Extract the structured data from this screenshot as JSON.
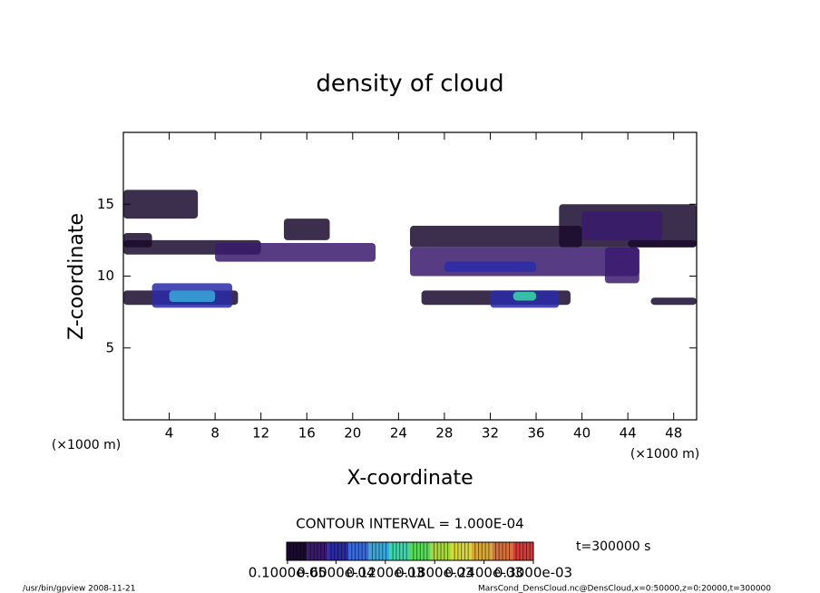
{
  "chart_data": {
    "type": "contour",
    "title": "density of cloud",
    "xlabel": "X-coordinate",
    "ylabel": "Z-coordinate",
    "xunit": "(×1000 m)",
    "yunit": "(×1000 m)",
    "xlim": [
      0,
      50
    ],
    "ylim": [
      0,
      20
    ],
    "xticks": [
      4,
      8,
      12,
      16,
      20,
      24,
      28,
      32,
      36,
      40,
      44,
      48
    ],
    "yticks": [
      5,
      10,
      15
    ],
    "contour_interval": "CONTOUR INTERVAL = 1.000E-04",
    "time": "t=300000 s",
    "patches": [
      {
        "x": [
          0,
          6.5
        ],
        "z": [
          14,
          16
        ],
        "value": 2e-05
      },
      {
        "x": [
          0,
          12
        ],
        "z": [
          11.5,
          12.5
        ],
        "value": 2e-05
      },
      {
        "x": [
          0,
          2.5
        ],
        "z": [
          12,
          13
        ],
        "value": 2e-05
      },
      {
        "x": [
          8,
          22
        ],
        "z": [
          11,
          12.3
        ],
        "value": 3e-05
      },
      {
        "x": [
          14,
          18
        ],
        "z": [
          12.5,
          14
        ],
        "value": 2e-05
      },
      {
        "x": [
          0,
          10
        ],
        "z": [
          8,
          9
        ],
        "value": 2e-05
      },
      {
        "x": [
          2.5,
          9.5
        ],
        "z": [
          7.8,
          9.5
        ],
        "value": 6e-05
      },
      {
        "x": [
          4,
          8
        ],
        "z": [
          8.2,
          9
        ],
        "value": 0.00012
      },
      {
        "x": [
          25,
          40
        ],
        "z": [
          12,
          13.5
        ],
        "value": 2e-05
      },
      {
        "x": [
          25,
          45
        ],
        "z": [
          10,
          12
        ],
        "value": 3e-05
      },
      {
        "x": [
          28,
          36
        ],
        "z": [
          10.3,
          11
        ],
        "value": 6e-05
      },
      {
        "x": [
          26,
          39
        ],
        "z": [
          8,
          9
        ],
        "value": 2e-05
      },
      {
        "x": [
          32,
          38
        ],
        "z": [
          7.8,
          9
        ],
        "value": 6e-05
      },
      {
        "x": [
          34,
          36
        ],
        "z": [
          8.3,
          8.9
        ],
        "value": 0.00013
      },
      {
        "x": [
          38,
          50
        ],
        "z": [
          12,
          15
        ],
        "value": 2e-05
      },
      {
        "x": [
          40,
          47
        ],
        "z": [
          12.5,
          14.5
        ],
        "value": 4e-05
      },
      {
        "x": [
          42,
          45
        ],
        "z": [
          9.5,
          12
        ],
        "value": 3e-05
      },
      {
        "x": [
          44,
          50
        ],
        "z": [
          12,
          12.5
        ],
        "value": 2e-05
      },
      {
        "x": [
          46,
          50
        ],
        "z": [
          8,
          8.5
        ],
        "value": 2e-05
      }
    ],
    "colorbar": {
      "clim": [
        0,
        0.0003
      ],
      "colors": [
        "#1a0a2e",
        "#3a1a6e",
        "#2a2aa8",
        "#3a6ad8",
        "#3aa8d8",
        "#3ad8a8",
        "#5ad85a",
        "#a8d83a",
        "#d8d83a",
        "#d8a83a",
        "#d8703a",
        "#d83a3a"
      ],
      "ticks": [
        {
          "value": 1e-06,
          "label": "0.1000e-05"
        },
        {
          "value": 6e-05,
          "label": "0.6000e-04"
        },
        {
          "value": 0.00012,
          "label": "0.1200e-03"
        },
        {
          "value": 0.00018,
          "label": "0.1800e-03"
        },
        {
          "value": 0.00024,
          "label": "0.2400e-03"
        },
        {
          "value": 0.0003,
          "label": "0.3000e-03"
        }
      ]
    },
    "footer_left": "/usr/bin/gpview  2008-11-21",
    "footer_right": "MarsCond_DensCloud.nc@DensCloud,x=0:50000,z=0:20000,t=300000"
  }
}
